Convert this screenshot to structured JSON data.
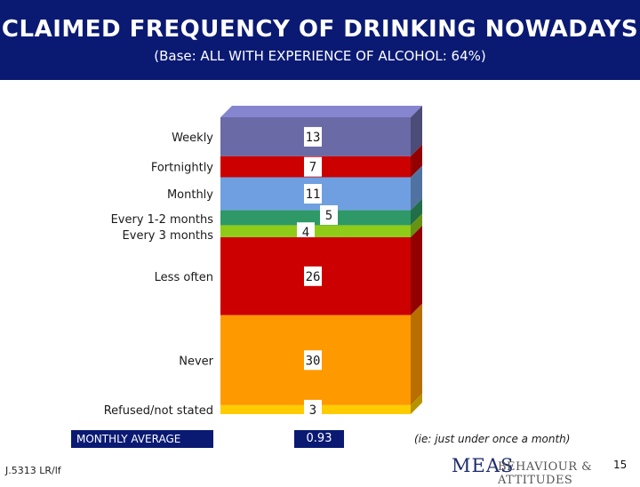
{
  "header": {
    "title": "CLAIMED FREQUENCY OF DRINKING NOWADAYS",
    "subtitle": "(Base: ALL WITH EXPERIENCE OF ALCOHOL: 64%)"
  },
  "chart_data": {
    "type": "bar",
    "stacked": true,
    "categories": [
      "Weekly",
      "Fortnightly",
      "Monthly",
      "Every 1-2 months",
      "Every 3 months",
      "Less often",
      "Never",
      "Refused/not stated"
    ],
    "values": [
      13,
      7,
      11,
      5,
      4,
      26,
      30,
      3
    ],
    "colors": [
      "#6a6aa6",
      "#cc0000",
      "#6f9fe0",
      "#2e9966",
      "#8fcc1a",
      "#cc0000",
      "#ff9900",
      "#ffcc00"
    ],
    "unit": "%"
  },
  "summary": {
    "label": "MONTHLY AVERAGE",
    "value": "0.93",
    "note": "(ie: just under once a month)"
  },
  "footer": {
    "reference": "J.5313 LR/lf",
    "logo_primary": "MEAS",
    "logo_secondary": "BEHAVIOUR & ATTITUDES",
    "page_number": "15"
  }
}
